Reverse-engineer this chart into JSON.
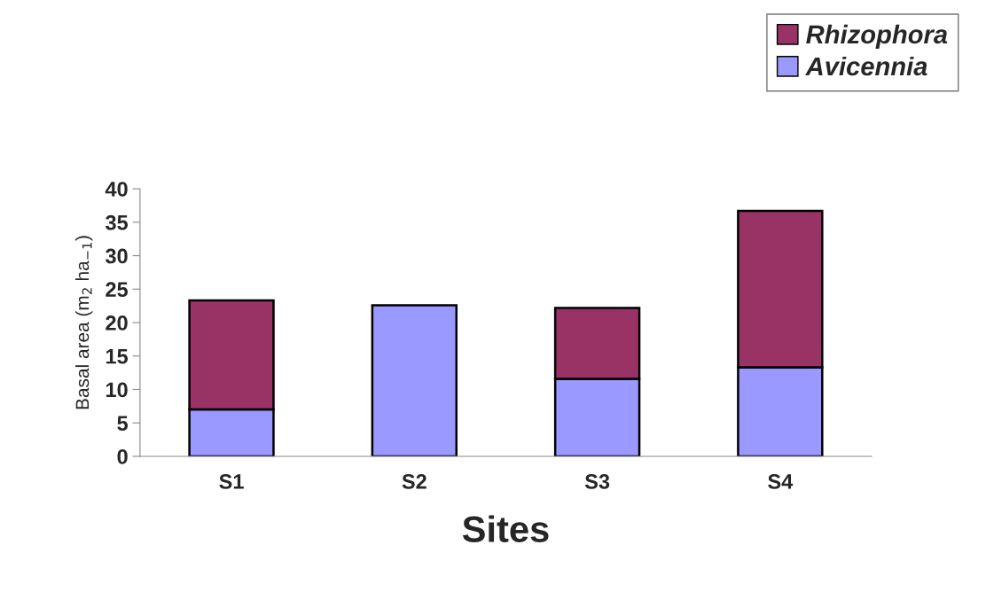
{
  "chart_data": {
    "type": "bar",
    "stacked": true,
    "xlabel": "Sites",
    "ylabel": "Basal area (m$_{2}$ ha$_{−1}$)",
    "categories": [
      "S1",
      "S2",
      "S3",
      "S4"
    ],
    "series": [
      {
        "name": "Avicennia",
        "color": "#9999ff",
        "values": [
          7.0,
          22.6,
          11.6,
          13.3
        ]
      },
      {
        "name": "Rhizophora",
        "color": "#993366",
        "values": [
          16.3,
          null,
          10.6,
          23.4
        ]
      }
    ],
    "ylim": [
      0,
      40
    ],
    "yticks": [
      0,
      5,
      10,
      15,
      20,
      25,
      30,
      35,
      40
    ],
    "grid": false,
    "legend": "top right"
  }
}
